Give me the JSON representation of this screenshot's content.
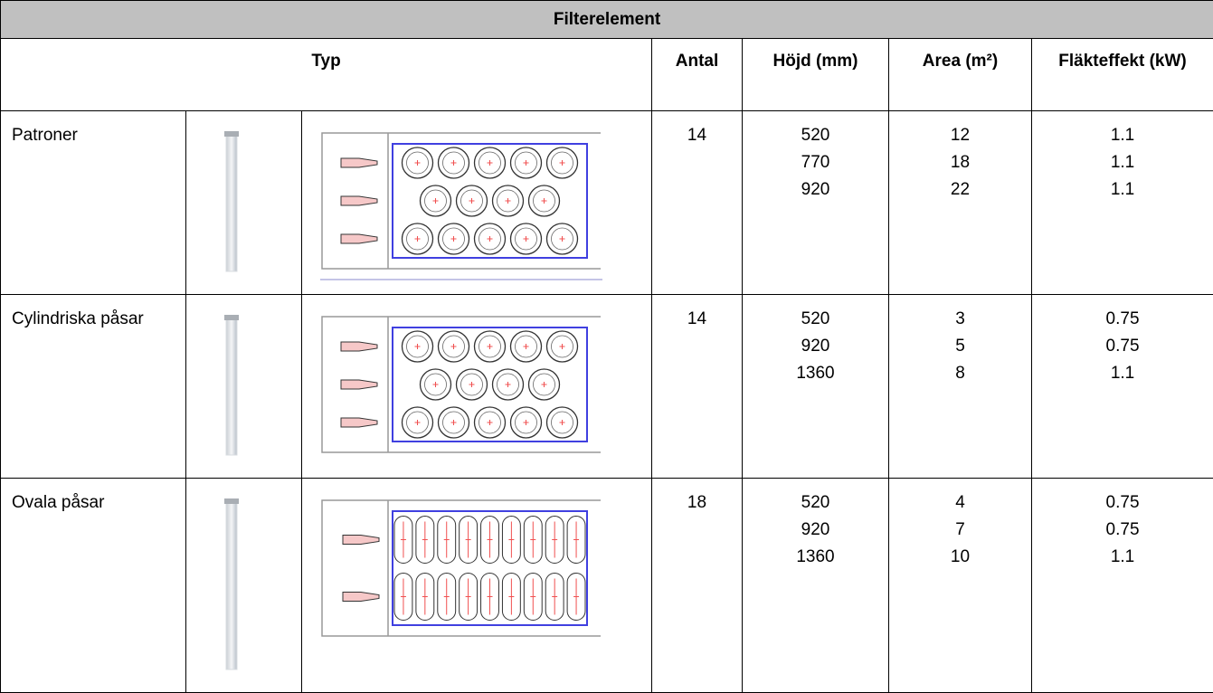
{
  "header": {
    "title": "Filterelement"
  },
  "table": {
    "columns": [
      "Typ",
      "Antal",
      "Höjd (mm)",
      "Area (m²)",
      "Fläkteffekt (kW)"
    ],
    "rows": [
      {
        "name": "Patroner",
        "antal": 14,
        "hojd": [
          520,
          770,
          920
        ],
        "area": [
          12,
          18,
          22
        ],
        "flakt": [
          1.1,
          1.1,
          1.1
        ]
      },
      {
        "name": "Cylindriska påsar",
        "antal": 14,
        "hojd": [
          520,
          920,
          1360
        ],
        "area": [
          3,
          5,
          8
        ],
        "flakt": [
          0.75,
          0.75,
          1.1
        ]
      },
      {
        "name": "Ovala påsar",
        "antal": 18,
        "hojd": [
          520,
          920,
          1360
        ],
        "area": [
          4,
          7,
          10
        ],
        "flakt": [
          0.75,
          0.75,
          1.1
        ]
      }
    ]
  }
}
